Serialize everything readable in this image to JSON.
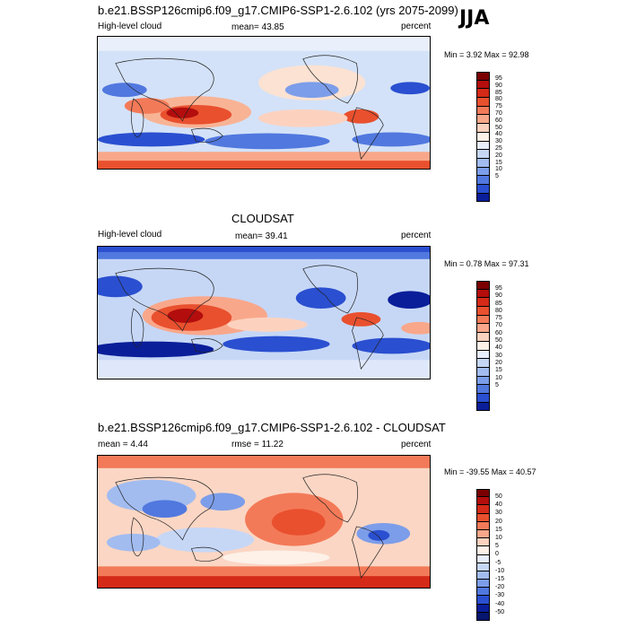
{
  "season": "JJA",
  "panels": [
    {
      "title": "b.e21.BSSP126cmip6.f09_g17.CMIP6-SSP1-2.6.102 (yrs 2075-2099)",
      "left_label": "High-level cloud",
      "center_label": "mean=  43.85",
      "right_label": "percent",
      "minmax": "Min =   3.92 Max =  92.98",
      "colorbar_labels": [
        "95",
        "90",
        "85",
        "80",
        "75",
        "70",
        "60",
        "50",
        "40",
        "30",
        "25",
        "20",
        "15",
        "10",
        "5"
      ],
      "colorbar_colors": [
        "#7a0000",
        "#b30d0d",
        "#d42a17",
        "#e9502e",
        "#f37a58",
        "#f9a78a",
        "#fcd2bf",
        "#fdf1e8",
        "#e8eefb",
        "#c6d7f6",
        "#a2bcf0",
        "#7c9de9",
        "#5178df",
        "#2a4fd0",
        "#0a1e9a"
      ]
    },
    {
      "title": "CLOUDSAT",
      "left_label": "High-level cloud",
      "center_label": "mean=  39.41",
      "right_label": "percent",
      "minmax": "Min =   0.78 Max =  97.31",
      "colorbar_labels": [
        "95",
        "90",
        "85",
        "80",
        "75",
        "70",
        "60",
        "50",
        "40",
        "30",
        "20",
        "15",
        "10",
        "5"
      ],
      "colorbar_colors": [
        "#7a0000",
        "#b30d0d",
        "#d42a17",
        "#e9502e",
        "#f37a58",
        "#f9a78a",
        "#fcd2bf",
        "#fdf1e8",
        "#e8eefb",
        "#c6d7f6",
        "#a2bcf0",
        "#7c9de9",
        "#5178df",
        "#2a4fd0",
        "#0a1e9a"
      ]
    },
    {
      "title": "b.e21.BSSP126cmip6.f09_g17.CMIP6-SSP1-2.6.102 - CLOUDSAT",
      "left_label": "mean =   4.44",
      "center_label": "rmse =  11.22",
      "right_label": "percent",
      "minmax": "Min = -39.55 Max =  40.57",
      "colorbar_labels": [
        "50",
        "40",
        "30",
        "20",
        "15",
        "10",
        "5",
        "0",
        "-5",
        "-10",
        "-15",
        "-20",
        "-30",
        "-40",
        "-50"
      ],
      "colorbar_colors": [
        "#7a0000",
        "#b30d0d",
        "#d42a17",
        "#e9502e",
        "#f37a58",
        "#f9a78a",
        "#fcd2bf",
        "#fdf1e8",
        "#e8eefb",
        "#c6d7f6",
        "#a2bcf0",
        "#7c9de9",
        "#5178df",
        "#2a4fd0",
        "#0a1e9a",
        "#06156e"
      ]
    }
  ]
}
